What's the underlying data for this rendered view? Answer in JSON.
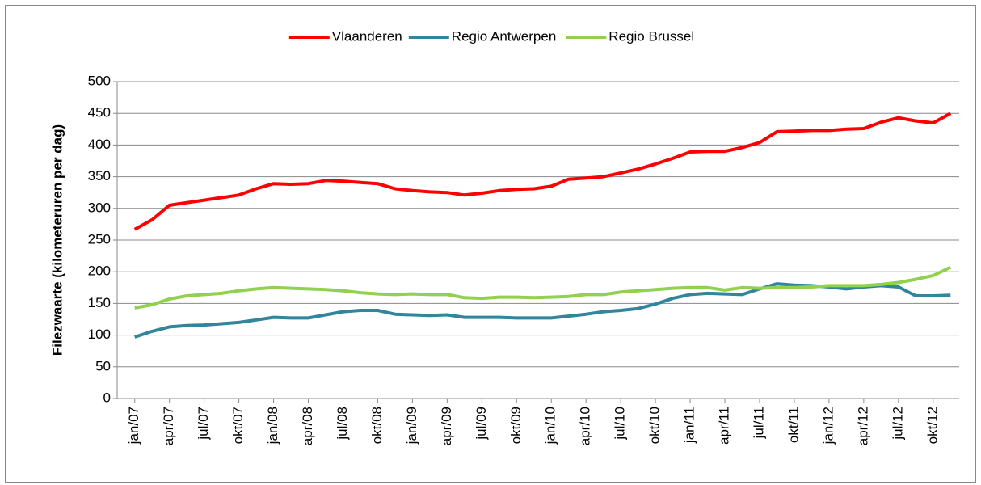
{
  "chart_data": {
    "type": "line",
    "y_label": "Filezwaarte (kilometeruren per dag)",
    "categories": [
      "jan/07",
      null,
      "apr/07",
      null,
      "jul/07",
      null,
      "okt/07",
      null,
      "jan/08",
      null,
      "apr/08",
      null,
      "jul/08",
      null,
      "okt/08",
      null,
      "jan/09",
      null,
      "apr/09",
      null,
      "jul/09",
      null,
      "okt/09",
      null,
      "jan/10",
      null,
      "apr/10",
      null,
      "jul/10",
      null,
      "okt/10",
      null,
      "jan/11",
      null,
      "apr/11",
      null,
      "jul/11",
      null,
      "okt/11",
      null,
      "jan/12",
      null,
      "apr/12",
      null,
      "jul/12",
      null,
      "okt/12",
      null
    ],
    "series": [
      {
        "name": "Vlaanderen",
        "color": "#ff0000",
        "values": [
          267,
          282,
          305,
          309,
          313,
          317,
          321,
          331,
          339,
          338,
          339,
          344,
          343,
          341,
          339,
          331,
          328,
          326,
          325,
          321,
          324,
          328,
          330,
          331,
          335,
          346,
          348,
          350,
          356,
          362,
          370,
          379,
          389,
          390,
          390,
          396,
          404,
          421,
          422,
          423,
          423,
          425,
          426,
          436,
          443,
          438,
          435,
          450
        ]
      },
      {
        "name": "Regio Antwerpen",
        "color": "#31859c",
        "values": [
          97,
          106,
          113,
          115,
          116,
          118,
          120,
          124,
          128,
          127,
          127,
          132,
          137,
          139,
          139,
          133,
          132,
          131,
          132,
          128,
          128,
          128,
          127,
          127,
          127,
          130,
          133,
          137,
          139,
          142,
          149,
          158,
          164,
          166,
          165,
          164,
          173,
          181,
          179,
          178,
          176,
          173,
          176,
          178,
          176,
          162,
          162,
          163
        ]
      },
      {
        "name": "Regio Brussel",
        "color": "#92d050",
        "values": [
          143,
          148,
          157,
          162,
          164,
          166,
          170,
          173,
          175,
          174,
          173,
          172,
          170,
          167,
          165,
          164,
          165,
          164,
          164,
          159,
          158,
          160,
          160,
          159,
          160,
          161,
          164,
          164,
          168,
          170,
          172,
          174,
          175,
          175,
          171,
          175,
          174,
          175,
          175,
          176,
          178,
          178,
          178,
          180,
          183,
          188,
          194,
          207
        ]
      }
    ],
    "ylim": [
      0,
      500
    ],
    "yticks": [
      0,
      50,
      100,
      150,
      200,
      250,
      300,
      350,
      400,
      450,
      500
    ],
    "grid": true,
    "legend": "top"
  }
}
